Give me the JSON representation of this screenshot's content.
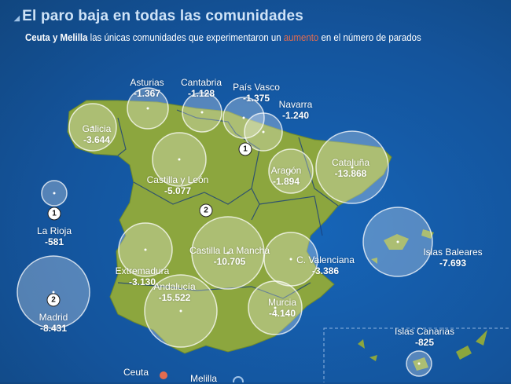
{
  "header": {
    "title": "El paro baja en todas las comunidades",
    "subtitle": {
      "bold": "Ceuta y Melilla",
      "part1": " las únicas comunidades que experimentaron un ",
      "highlight": "aumento",
      "part2": " en el número de parados"
    }
  },
  "colors": {
    "land": "#8ca63e",
    "sea": "#14549c",
    "increase": "#e36c4f",
    "circle": "#ffffff"
  },
  "regions": [
    {
      "name": "Asturias",
      "value": "-1.367"
    },
    {
      "name": "Cantabria",
      "value": "-1.128"
    },
    {
      "name": "País Vasco",
      "value": "-1.375"
    },
    {
      "name": "Navarra",
      "value": "-1.240"
    },
    {
      "name": "Galicia",
      "value": "-3.644"
    },
    {
      "name": "Cataluña",
      "value": "-13.868"
    },
    {
      "name": "Castilla y León",
      "value": "-5.077"
    },
    {
      "name": "Aragón",
      "value": "-1.894"
    },
    {
      "name": "La Rioja",
      "value": "-581"
    },
    {
      "name": "Castilla La Mancha",
      "value": "-10.705"
    },
    {
      "name": "C. Valenciana",
      "value": "-3.386"
    },
    {
      "name": "Islas Baleares",
      "value": "-7.693"
    },
    {
      "name": "Extremadura",
      "value": "-3.130"
    },
    {
      "name": "Madrid",
      "value": "-8.431"
    },
    {
      "name": "Andalucía",
      "value": "-15.522"
    },
    {
      "name": "Murcia",
      "value": "-4.140"
    },
    {
      "name": "Islas Canarias",
      "value": "-825"
    },
    {
      "name": "Ceuta",
      "value": ""
    },
    {
      "name": "Melilla",
      "value": ""
    }
  ],
  "badges": [
    "1",
    "2",
    "1",
    "2"
  ]
}
